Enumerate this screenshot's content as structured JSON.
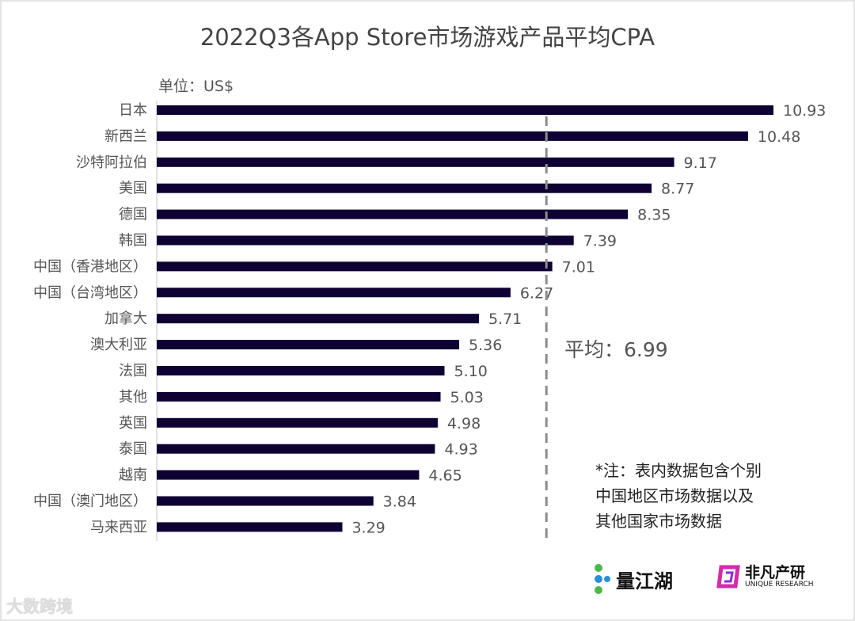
{
  "chart_data": {
    "type": "bar",
    "orientation": "horizontal",
    "title": "2022Q3各App Store市场游戏产品平均CPA",
    "unit_label": "单位：US$",
    "categories": [
      "日本",
      "新西兰",
      "沙特阿拉伯",
      "美国",
      "德国",
      "韩国",
      "中国（香港地区）",
      "中国（台湾地区）",
      "加拿大",
      "澳大利亚",
      "法国",
      "其他",
      "英国",
      "泰国",
      "越南",
      "中国（澳门地区）",
      "马来西亚"
    ],
    "values": [
      10.93,
      10.48,
      9.17,
      8.77,
      8.35,
      7.39,
      7.01,
      6.27,
      5.71,
      5.36,
      5.1,
      5.03,
      4.98,
      4.93,
      4.65,
      3.84,
      3.29
    ],
    "value_labels": [
      "10.93",
      "10.48",
      "9.17",
      "8.77",
      "8.35",
      "7.39",
      "7.01",
      "6.27",
      "5.71",
      "5.36",
      "5.10",
      "5.03",
      "4.98",
      "4.93",
      "4.65",
      "3.84",
      "3.29"
    ],
    "xlim": [
      0,
      10.93
    ],
    "grid": false,
    "bar_color": "#0e0033",
    "reference_line": {
      "value": 6.99,
      "style": "dashed",
      "color": "#8c8c8c",
      "label": "平均：6.99"
    },
    "note_lines": [
      "*注：表内数据包含个别",
      "中国地区市场数据以及",
      "其他国家市场数据"
    ]
  },
  "logos": {
    "liangjianghu": "量江湖",
    "feifan": "非凡产研",
    "feifan_sub": "UNIQUE RESEARCH",
    "watermark": "大数跨境"
  }
}
